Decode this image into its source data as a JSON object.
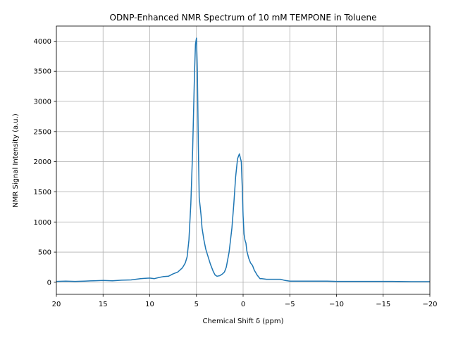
{
  "chart_data": {
    "type": "line",
    "title": "ODNP-Enhanced NMR Spectrum of 10 mM TEMPONE in Toluene",
    "xlabel": "Chemical Shift δ (ppm)",
    "ylabel": "NMR Signal Intensity (a.u.)",
    "xlim": [
      20,
      -20
    ],
    "ylim": [
      -200,
      4250
    ],
    "x_reversed": true,
    "grid": true,
    "x_ticks": [
      20,
      15,
      10,
      5,
      0,
      -5,
      -10,
      -15,
      -20
    ],
    "x_tick_labels": [
      "20",
      "15",
      "10",
      "5",
      "0",
      "−5",
      "−10",
      "−15",
      "−20"
    ],
    "y_ticks": [
      0,
      500,
      1000,
      1500,
      2000,
      2500,
      3000,
      3500,
      4000
    ],
    "y_tick_labels": [
      "0",
      "500",
      "1000",
      "1500",
      "2000",
      "2500",
      "3000",
      "3500",
      "4000"
    ],
    "series": [
      {
        "color": "#1f77b4",
        "x": [
          20,
          19,
          18,
          17,
          16,
          15,
          14,
          13,
          12,
          11,
          10.5,
          10,
          9.5,
          9,
          8.5,
          8,
          7.5,
          7,
          6.5,
          6.2,
          6,
          5.8,
          5.6,
          5.4,
          5.2,
          5.1,
          5.0,
          4.9,
          4.8,
          4.7,
          4.6,
          4.5,
          4.4,
          4.2,
          4,
          3.8,
          3.5,
          3.2,
          3,
          2.8,
          2.5,
          2.2,
          2,
          1.8,
          1.5,
          1.2,
          1,
          0.8,
          0.6,
          0.4,
          0.2,
          0.1,
          0,
          -0.1,
          -0.2,
          -0.3,
          -0.4,
          -0.6,
          -0.8,
          -1,
          -1.2,
          -1.5,
          -1.8,
          -2,
          -2.3,
          -2.5,
          -3,
          -3.5,
          -4,
          -4.5,
          -5,
          -6,
          -7,
          -8,
          -9,
          -10,
          -12,
          -14,
          -16,
          -18,
          -20
        ],
        "y": [
          15,
          20,
          15,
          20,
          25,
          30,
          25,
          35,
          40,
          60,
          65,
          70,
          60,
          80,
          95,
          100,
          140,
          170,
          240,
          320,
          420,
          700,
          1300,
          2200,
          3500,
          3950,
          4050,
          3500,
          2300,
          1400,
          1250,
          1100,
          900,
          700,
          550,
          450,
          300,
          180,
          120,
          100,
          110,
          140,
          170,
          250,
          500,
          900,
          1300,
          1750,
          2050,
          2130,
          2000,
          1600,
          1100,
          800,
          700,
          650,
          520,
          400,
          320,
          280,
          200,
          120,
          60,
          60,
          55,
          50,
          50,
          50,
          50,
          30,
          20,
          20,
          20,
          20,
          20,
          15,
          15,
          15,
          15,
          10,
          10
        ]
      }
    ]
  }
}
